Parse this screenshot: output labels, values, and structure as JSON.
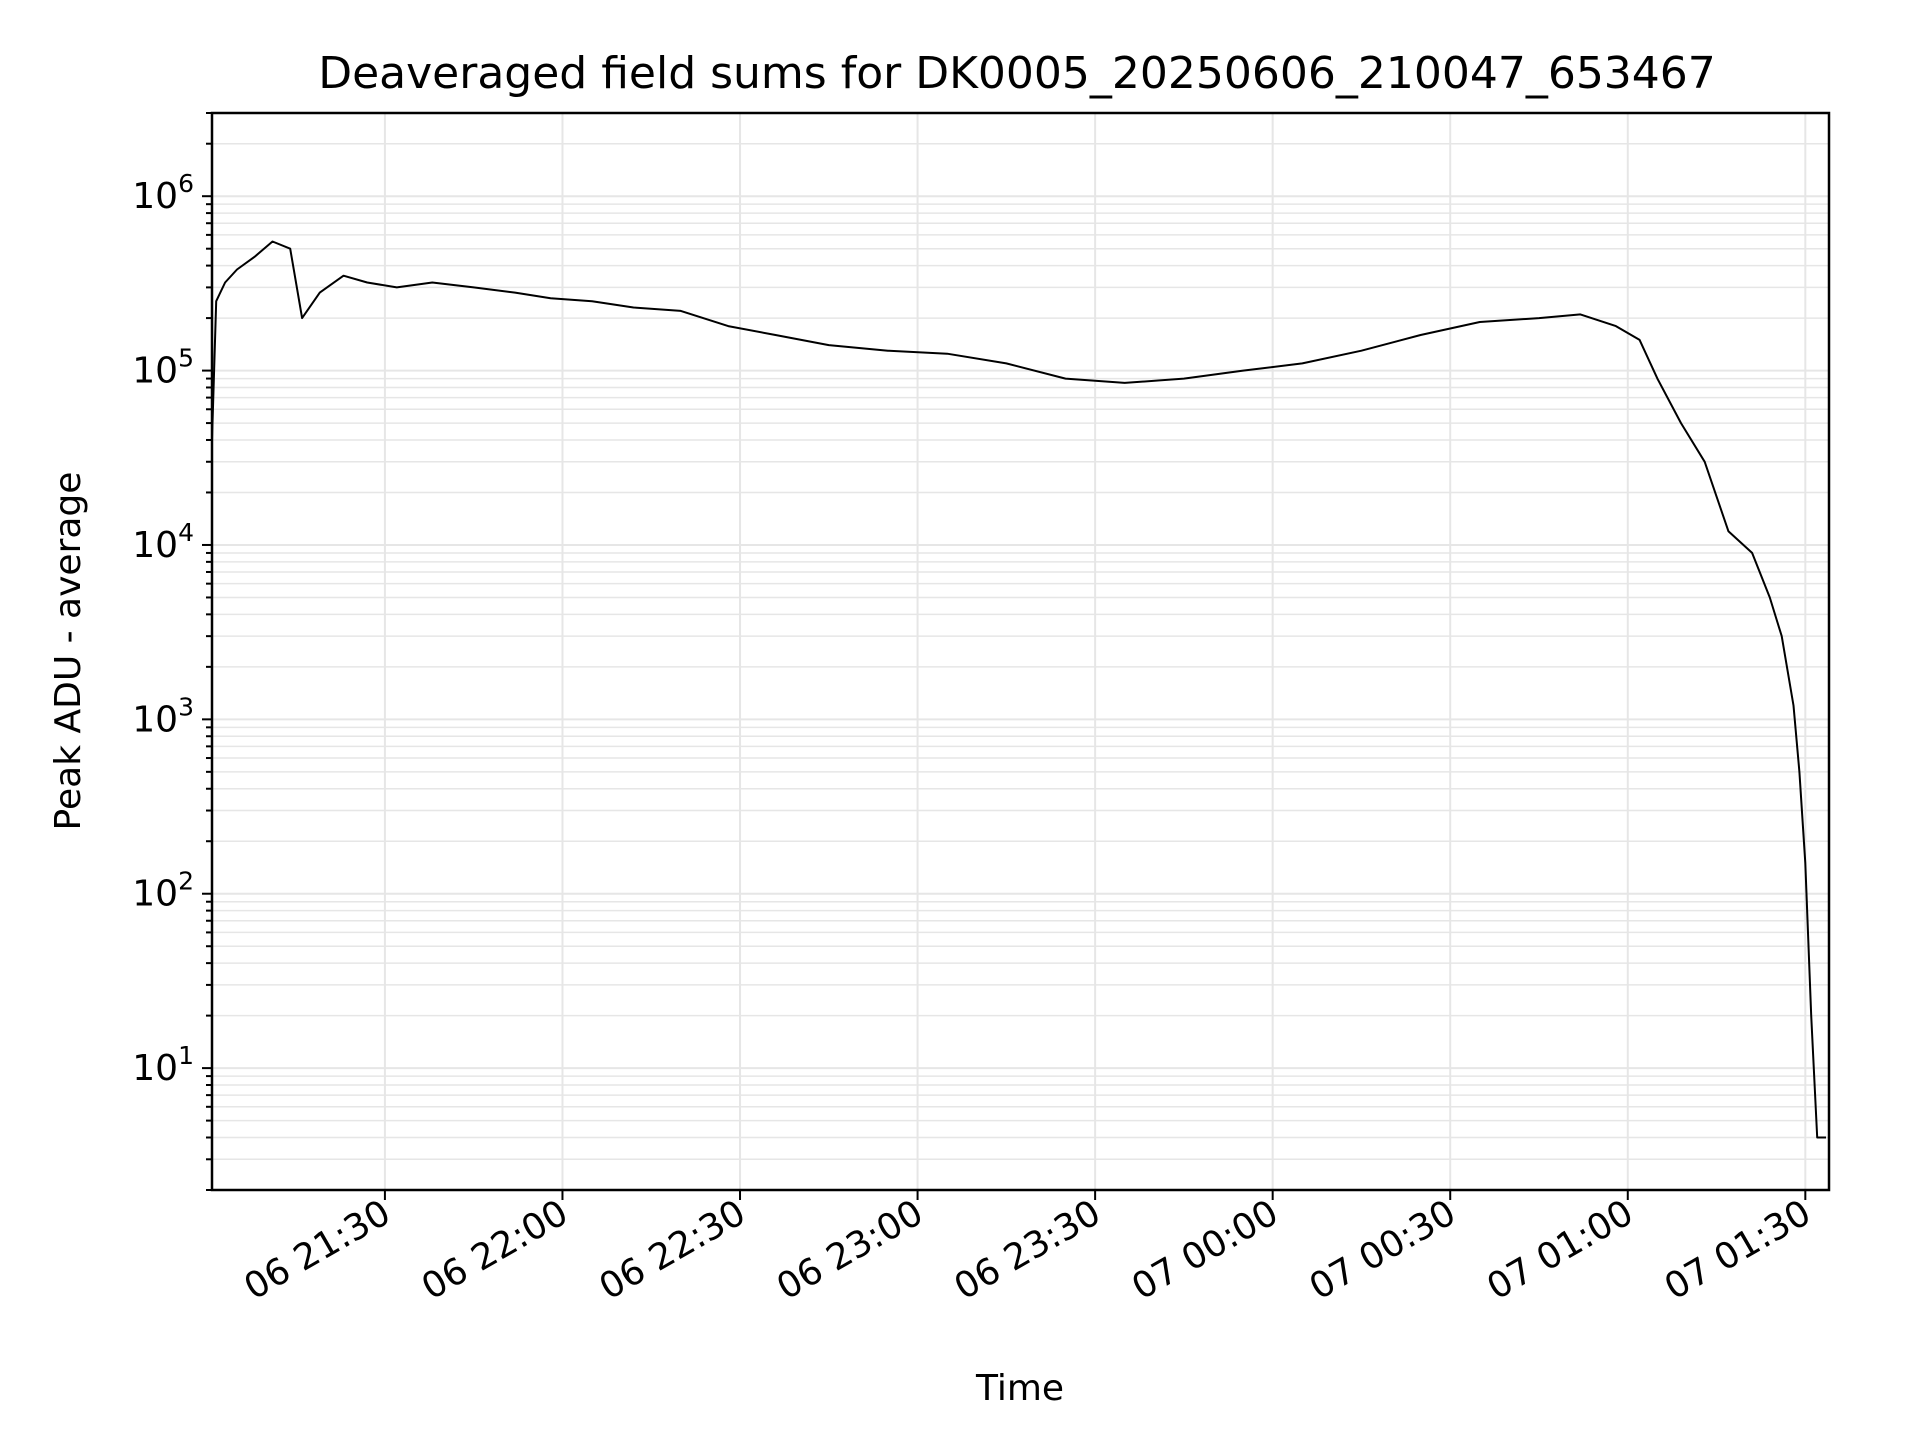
{
  "chart_data": {
    "type": "line",
    "title": "Deaveraged field sums for DK0005_20250606_210047_653467",
    "xlabel": "Time",
    "ylabel": "Peak ADU - average",
    "yscale": "log",
    "xlim": [
      "2025-06-06 21:00:47",
      "2025-06-07 01:34:00"
    ],
    "ylim": [
      2,
      3000000
    ],
    "x_ticks": [
      {
        "t": "2025-06-06 21:30",
        "label": "06 21:30"
      },
      {
        "t": "2025-06-06 22:00",
        "label": "06 22:00"
      },
      {
        "t": "2025-06-06 22:30",
        "label": "06 22:30"
      },
      {
        "t": "2025-06-06 23:00",
        "label": "06 23:00"
      },
      {
        "t": "2025-06-06 23:30",
        "label": "06 23:30"
      },
      {
        "t": "2025-06-07 00:00",
        "label": "07 00:00"
      },
      {
        "t": "2025-06-07 00:30",
        "label": "07 00:30"
      },
      {
        "t": "2025-06-07 01:00",
        "label": "07 01:00"
      },
      {
        "t": "2025-06-07 01:30",
        "label": "07 01:30"
      }
    ],
    "y_ticks": [
      {
        "value": 10,
        "base": "10",
        "exp": "1"
      },
      {
        "value": 100,
        "base": "10",
        "exp": "2"
      },
      {
        "value": 1000,
        "base": "10",
        "exp": "3"
      },
      {
        "value": 10000,
        "base": "10",
        "exp": "4"
      },
      {
        "value": 100000,
        "base": "10",
        "exp": "5"
      },
      {
        "value": 1000000,
        "base": "10",
        "exp": "6"
      }
    ],
    "grid": true,
    "line_color": "#000000",
    "grid_color": "#e6e6e6",
    "series": [
      {
        "x": [
          "2025-06-06 21:00:47",
          "2025-06-06 21:01:30",
          "2025-06-06 21:03:00",
          "2025-06-06 21:05:00",
          "2025-06-06 21:08:00",
          "2025-06-06 21:11:00",
          "2025-06-06 21:14:00",
          "2025-06-06 21:16:00",
          "2025-06-06 21:19:00",
          "2025-06-06 21:23:00",
          "2025-06-06 21:27:00",
          "2025-06-06 21:32:00",
          "2025-06-06 21:38:00",
          "2025-06-06 21:45:00",
          "2025-06-06 21:52:00",
          "2025-06-06 21:58:00",
          "2025-06-06 22:05:00",
          "2025-06-06 22:12:00",
          "2025-06-06 22:20:00",
          "2025-06-06 22:28:00",
          "2025-06-06 22:36:00",
          "2025-06-06 22:45:00",
          "2025-06-06 22:55:00",
          "2025-06-06 23:05:00",
          "2025-06-06 23:15:00",
          "2025-06-06 23:25:00",
          "2025-06-06 23:35:00",
          "2025-06-06 23:45:00",
          "2025-06-06 23:55:00",
          "2025-06-07 00:05:00",
          "2025-06-07 00:15:00",
          "2025-06-07 00:25:00",
          "2025-06-07 00:35:00",
          "2025-06-07 00:45:00",
          "2025-06-07 00:52:00",
          "2025-06-07 00:58:00",
          "2025-06-07 01:02:00",
          "2025-06-07 01:05:00",
          "2025-06-07 01:09:00",
          "2025-06-07 01:13:00",
          "2025-06-07 01:17:00",
          "2025-06-07 01:21:00",
          "2025-06-07 01:24:00",
          "2025-06-07 01:26:00",
          "2025-06-07 01:28:00",
          "2025-06-07 01:29:00",
          "2025-06-07 01:30:00",
          "2025-06-07 01:31:00",
          "2025-06-07 01:32:00",
          "2025-06-07 01:33:30"
        ],
        "y": [
          40000,
          250000,
          320000,
          380000,
          450000,
          550000,
          500000,
          200000,
          280000,
          350000,
          320000,
          300000,
          320000,
          300000,
          280000,
          260000,
          250000,
          230000,
          220000,
          180000,
          160000,
          140000,
          130000,
          125000,
          110000,
          90000,
          85000,
          90000,
          100000,
          110000,
          130000,
          160000,
          190000,
          200000,
          210000,
          180000,
          150000,
          90000,
          50000,
          30000,
          12000,
          9000,
          5000,
          3000,
          1200,
          500,
          150,
          20,
          4,
          4
        ]
      }
    ]
  }
}
